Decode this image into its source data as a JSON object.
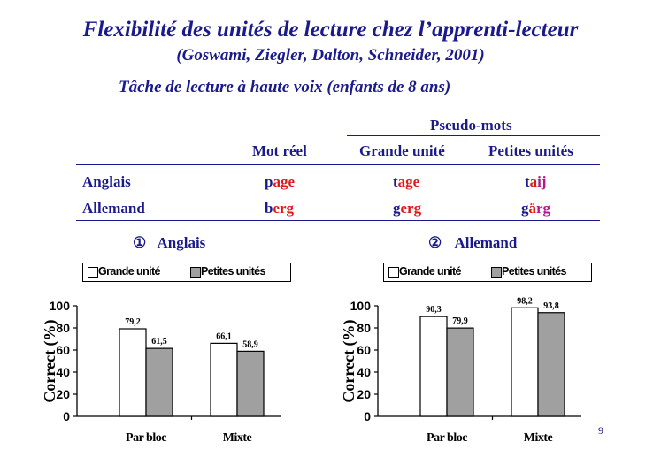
{
  "slide": {
    "title": "Flexibilité des unités de lecture chez l’apprenti-lecteur",
    "citation": "(Goswami, Ziegler, Dalton, Schneider, 2001)",
    "subtitle": "Tâche de lecture à haute voix (enfants de 8 ans)",
    "page_number": "9"
  },
  "table": {
    "group_header": "Pseudo-mots",
    "columns": [
      "Mot réel",
      "Grande unité",
      "Petites unités"
    ],
    "rows": [
      {
        "label": "Anglais",
        "cells": [
          [
            {
              "t": "p",
              "c": "blue"
            },
            {
              "t": "age",
              "c": "red"
            }
          ],
          [
            {
              "t": "t",
              "c": "blue"
            },
            {
              "t": "age",
              "c": "red"
            }
          ],
          [
            {
              "t": "t",
              "c": "blue"
            },
            {
              "t": "a",
              "c": "red"
            },
            {
              "t": "ij",
              "c": "purple"
            }
          ]
        ]
      },
      {
        "label": "Allemand",
        "cells": [
          [
            {
              "t": "b",
              "c": "blue"
            },
            {
              "t": "erg",
              "c": "red"
            }
          ],
          [
            {
              "t": "g",
              "c": "blue"
            },
            {
              "t": "erg",
              "c": "red"
            }
          ],
          [
            {
              "t": "g",
              "c": "blue"
            },
            {
              "t": "ä",
              "c": "red"
            },
            {
              "t": "rg",
              "c": "purple"
            }
          ]
        ]
      }
    ]
  },
  "colors": {
    "text": "#1a1a8c",
    "red": "#e0181c",
    "purple": "#b0198c",
    "bar_white": "#ffffff",
    "bar_gray": "#a0a0a0"
  },
  "panels": [
    {
      "marker": "①",
      "label": "Anglais"
    },
    {
      "marker": "②",
      "label": "Allemand"
    }
  ],
  "chart_data": [
    {
      "type": "bar",
      "categories": [
        "Par bloc",
        "Mixte"
      ],
      "series": [
        {
          "name": "Grande unité",
          "values": [
            79.2,
            66.1
          ],
          "labels": [
            "79,2",
            "66,1"
          ]
        },
        {
          "name": "Petites unités",
          "values": [
            61.5,
            58.9
          ],
          "labels": [
            "61,5",
            "58,9"
          ]
        }
      ],
      "ylabel": "Correct (%)",
      "ylim": [
        0,
        100
      ],
      "yticks": [
        "0",
        "20",
        "40",
        "60",
        "80",
        "100"
      ],
      "legend": "top"
    },
    {
      "type": "bar",
      "categories": [
        "Par bloc",
        "Mixte"
      ],
      "series": [
        {
          "name": "Grande unité",
          "values": [
            90.3,
            98.2
          ],
          "labels": [
            "90,3",
            "98,2"
          ]
        },
        {
          "name": "Petites unités",
          "values": [
            79.9,
            93.8
          ],
          "labels": [
            "79,9",
            "93,8"
          ]
        }
      ],
      "ylabel": "Correct (%)",
      "ylim": [
        0,
        100
      ],
      "yticks": [
        "0",
        "20",
        "40",
        "60",
        "80",
        "100"
      ],
      "legend": "top"
    }
  ]
}
